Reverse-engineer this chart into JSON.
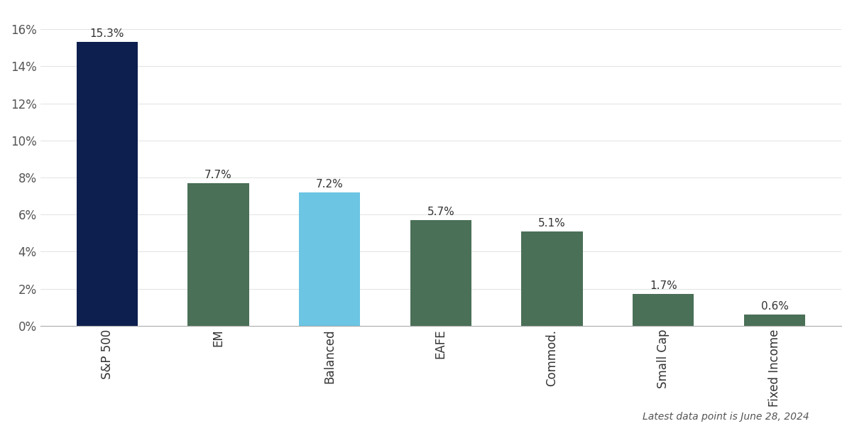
{
  "categories": [
    "S&P 500",
    "EM",
    "Balanced",
    "EAFE",
    "Commod.",
    "Small Cap",
    "Fixed Income"
  ],
  "values": [
    15.3,
    7.7,
    7.2,
    5.7,
    5.1,
    1.7,
    0.6
  ],
  "bar_colors": [
    "#0d1f4e",
    "#4a7057",
    "#6bc5e3",
    "#4a7057",
    "#4a7057",
    "#4a7057",
    "#4a7057"
  ],
  "label_texts": [
    "15.3%",
    "7.7%",
    "7.2%",
    "5.7%",
    "5.1%",
    "1.7%",
    "0.6%"
  ],
  "ylim": [
    0,
    17
  ],
  "yticks": [
    0,
    2,
    4,
    6,
    8,
    10,
    12,
    14,
    16
  ],
  "ytick_labels": [
    "0%",
    "2%",
    "4%",
    "6%",
    "8%",
    "10%",
    "12%",
    "14%",
    "16%"
  ],
  "footnote": "Latest data point is June 28, 2024",
  "background_color": "#ffffff",
  "bar_width": 0.55,
  "label_fontsize": 11,
  "tick_fontsize": 12,
  "footnote_fontsize": 10
}
